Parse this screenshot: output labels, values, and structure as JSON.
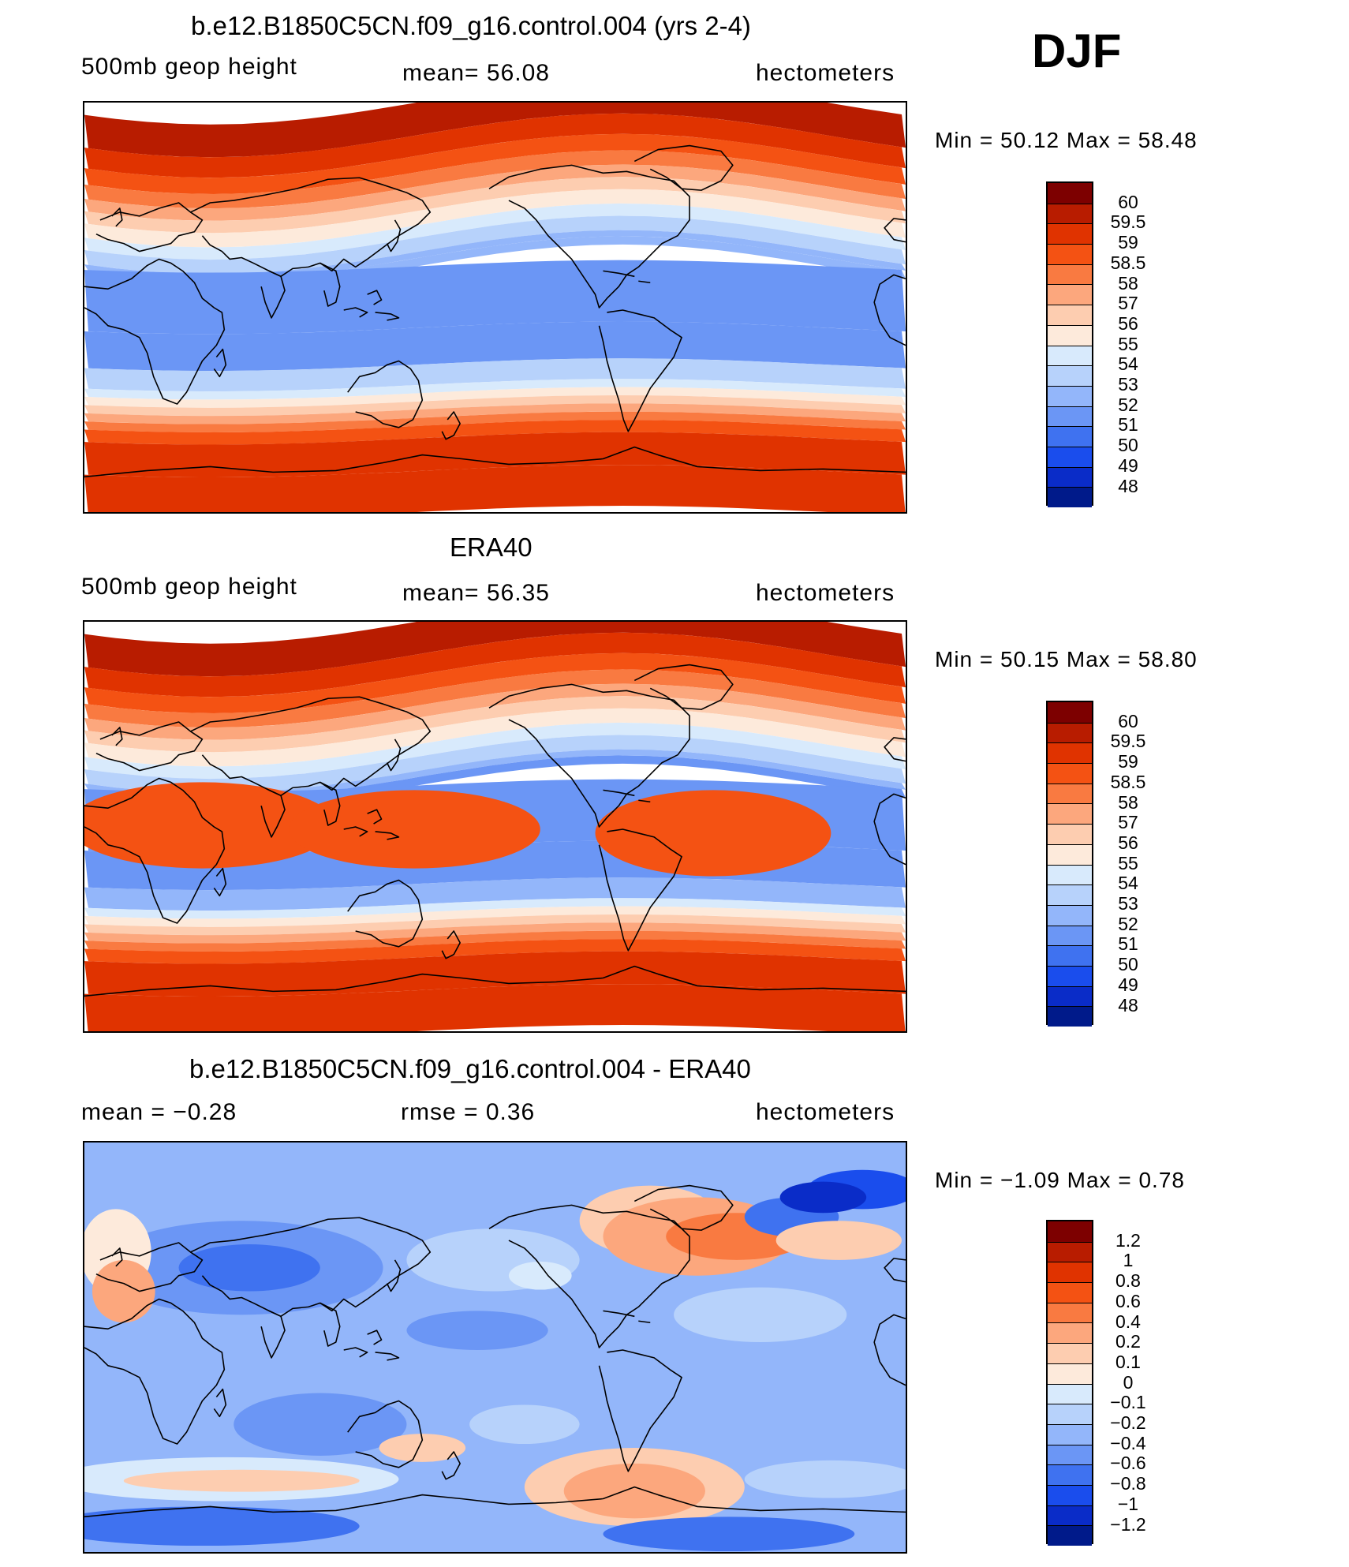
{
  "season": "DJF",
  "panels": [
    {
      "title": "b.e12.B1850C5CN.f09_g16.control.004 (yrs 2-4)",
      "left_label": "500mb  geop  height",
      "center_label": "mean=   56.08",
      "right_label": "hectometers",
      "minmax": "Min  =    50.12  Max  =    58.48",
      "map_name": "model-geopotential-map",
      "palette": "abs"
    },
    {
      "title": "ERA40",
      "left_label": "500mb  geop  height",
      "center_label": "mean=   56.35",
      "right_label": "hectometers",
      "minmax": "Min  =    50.15  Max  =    58.80",
      "map_name": "era40-geopotential-map",
      "palette": "abs"
    },
    {
      "title": "b.e12.B1850C5CN.f09_g16.control.004 - ERA40",
      "left_label": "mean  =   −0.28",
      "center_label": "rmse  =    0.36",
      "right_label": "hectometers",
      "minmax": "Min  =   −1.09  Max  =     0.78",
      "map_name": "difference-map",
      "palette": "diff"
    }
  ],
  "colorbars": {
    "abs": {
      "labels": [
        "60",
        "59.5",
        "59",
        "58.5",
        "58",
        "57",
        "56",
        "55",
        "54",
        "53",
        "52",
        "51",
        "50",
        "49",
        "48"
      ],
      "colors": [
        "#7d0000",
        "#b81c00",
        "#e03300",
        "#f45213",
        "#f97a41",
        "#fca77d",
        "#fdcdb0",
        "#fdeadb",
        "#d8eafc",
        "#b7d2fb",
        "#93b6fa",
        "#6b96f5",
        "#3f72f0",
        "#1a4ded",
        "#0a2cc8",
        "#001a8a"
      ]
    },
    "diff": {
      "labels": [
        "1.2",
        "1",
        "0.8",
        "0.6",
        "0.4",
        "0.2",
        "0.1",
        "0",
        "−0.1",
        "−0.2",
        "−0.4",
        "−0.6",
        "−0.8",
        "−1",
        "−1.2"
      ],
      "colors": [
        "#7d0000",
        "#b81c00",
        "#e03300",
        "#f45213",
        "#f97a41",
        "#fca77d",
        "#fdcdb0",
        "#fdeadb",
        "#d8eafc",
        "#b7d2fb",
        "#93b6fa",
        "#6b96f5",
        "#3f72f0",
        "#1a4ded",
        "#0a2cc8",
        "#001a8a"
      ]
    }
  }
}
